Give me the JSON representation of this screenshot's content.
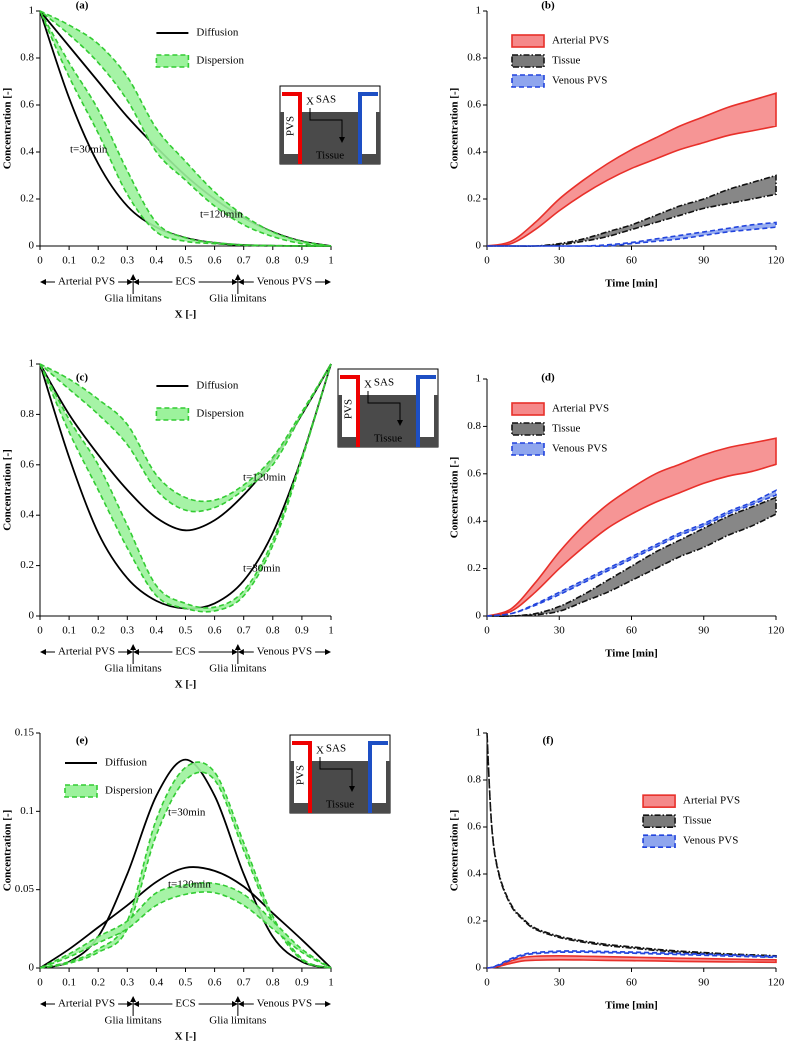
{
  "chart_data": [
    {
      "type": "line",
      "panel": "(a)",
      "xlabel": "X [-]",
      "ylabel": "Concentration [-]",
      "x": [
        0,
        0.1,
        0.2,
        0.3,
        0.4,
        0.5,
        0.6,
        0.7,
        0.8,
        0.9,
        1
      ],
      "xlim": [
        0,
        1
      ],
      "xticks": [
        0,
        0.1,
        0.2,
        0.3,
        0.4,
        0.5,
        0.6,
        0.7,
        0.8,
        0.9,
        1
      ],
      "ylim": [
        0,
        1
      ],
      "yticks": [
        0,
        0.2,
        0.4,
        0.6,
        0.8,
        1
      ],
      "legend": "upper center",
      "series": [
        {
          "name": "Diffusion",
          "color": "#000000",
          "curves": [
            [
              1,
              0.63,
              0.35,
              0.17,
              0.08,
              0.035,
              0.013,
              0.004,
              0.001,
              0,
              0
            ],
            [
              1,
              0.85,
              0.7,
              0.55,
              0.42,
              0.3,
              0.2,
              0.12,
              0.06,
              0.02,
              0
            ]
          ]
        },
        {
          "name": "Dispersion",
          "color": "#33cc33",
          "fill": "#9cf29c",
          "dash": "dashed",
          "bands": [
            {
              "lower": [
                1,
                0.72,
                0.48,
                0.22,
                0.06,
                0.02,
                0.01,
                0.003,
                0.001,
                0,
                0
              ],
              "upper": [
                1,
                0.78,
                0.58,
                0.32,
                0.1,
                0.035,
                0.015,
                0.005,
                0.002,
                0,
                0
              ]
            },
            {
              "lower": [
                1,
                0.9,
                0.78,
                0.62,
                0.4,
                0.28,
                0.17,
                0.09,
                0.04,
                0.01,
                0
              ],
              "upper": [
                1,
                0.94,
                0.86,
                0.72,
                0.5,
                0.36,
                0.23,
                0.13,
                0.06,
                0.02,
                0
              ]
            }
          ]
        }
      ],
      "annotations": [
        "t=30min",
        "t=120min"
      ],
      "regions": [
        "Arterial PVS",
        "ECS",
        "Venous PVS"
      ],
      "boundaries": [
        {
          "value": 0.32,
          "label": "Glia limitans"
        },
        {
          "value": 0.68,
          "label": "Glia limitans"
        }
      ],
      "inset": {
        "pvs": "PVS",
        "x": "X",
        "sas": "SAS",
        "tissue": "Tissue"
      }
    },
    {
      "type": "line",
      "panel": "(b)",
      "xlabel": "Time [min]",
      "ylabel": "Concentration [-]",
      "x": [
        0,
        10,
        20,
        30,
        40,
        50,
        60,
        70,
        80,
        90,
        100,
        110,
        120
      ],
      "xlim": [
        0,
        120
      ],
      "xticks": [
        0,
        30,
        60,
        90,
        120
      ],
      "ylim": [
        0,
        1
      ],
      "yticks": [
        0,
        0.2,
        0.4,
        0.6,
        0.8,
        1
      ],
      "legend": "upper left",
      "series": [
        {
          "name": "Arterial PVS",
          "color": "#e8302a",
          "fill": "#f5898a",
          "dash": "solid",
          "bands": [
            {
              "lower": [
                0,
                0.01,
                0.07,
                0.15,
                0.22,
                0.28,
                0.33,
                0.37,
                0.41,
                0.44,
                0.47,
                0.49,
                0.51
              ],
              "upper": [
                0,
                0.02,
                0.1,
                0.2,
                0.28,
                0.35,
                0.41,
                0.46,
                0.51,
                0.55,
                0.59,
                0.62,
                0.65
              ]
            }
          ]
        },
        {
          "name": "Tissue",
          "color": "#111111",
          "fill": "#7a7a7a",
          "dash": "dashdot",
          "bands": [
            {
              "lower": [
                0,
                0,
                0,
                0.005,
                0.02,
                0.04,
                0.07,
                0.1,
                0.13,
                0.16,
                0.18,
                0.2,
                0.22
              ],
              "upper": [
                0,
                0,
                0,
                0.01,
                0.03,
                0.06,
                0.09,
                0.13,
                0.17,
                0.2,
                0.24,
                0.27,
                0.3
              ]
            }
          ]
        },
        {
          "name": "Venous PVS",
          "color": "#2244dd",
          "fill": "#8fa6ee",
          "dash": "dashed",
          "bands": [
            {
              "lower": [
                0,
                0,
                0,
                0,
                0,
                0,
                0.01,
                0.02,
                0.03,
                0.045,
                0.06,
                0.07,
                0.08
              ],
              "upper": [
                0,
                0,
                0,
                0,
                0,
                0.005,
                0.015,
                0.03,
                0.045,
                0.06,
                0.075,
                0.09,
                0.1
              ]
            }
          ]
        }
      ]
    },
    {
      "type": "line",
      "panel": "(c)",
      "xlabel": "X [-]",
      "ylabel": "Concentration [-]",
      "x": [
        0,
        0.1,
        0.2,
        0.3,
        0.4,
        0.5,
        0.6,
        0.7,
        0.8,
        0.9,
        1
      ],
      "xlim": [
        0,
        1
      ],
      "xticks": [
        0,
        0.1,
        0.2,
        0.3,
        0.4,
        0.5,
        0.6,
        0.7,
        0.8,
        0.9,
        1
      ],
      "ylim": [
        0,
        1
      ],
      "yticks": [
        0,
        0.2,
        0.4,
        0.6,
        0.8,
        1
      ],
      "legend": "upper center",
      "series": [
        {
          "name": "Diffusion",
          "color": "#000000",
          "curves": [
            [
              1,
              0.8,
              0.64,
              0.5,
              0.39,
              0.34,
              0.38,
              0.48,
              0.62,
              0.8,
              1
            ],
            [
              1,
              0.63,
              0.33,
              0.15,
              0.06,
              0.03,
              0.05,
              0.14,
              0.33,
              0.63,
              1
            ]
          ]
        },
        {
          "name": "Dispersion",
          "color": "#33cc33",
          "fill": "#9cf29c",
          "dash": "dashed",
          "bands": [
            {
              "lower": [
                1,
                0.9,
                0.8,
                0.68,
                0.5,
                0.42,
                0.43,
                0.5,
                0.6,
                0.8,
                1
              ],
              "upper": [
                1,
                0.94,
                0.86,
                0.76,
                0.56,
                0.47,
                0.46,
                0.52,
                0.63,
                0.81,
                1
              ]
            },
            {
              "lower": [
                1,
                0.73,
                0.5,
                0.27,
                0.08,
                0.03,
                0.02,
                0.08,
                0.28,
                0.62,
                1
              ],
              "upper": [
                1,
                0.78,
                0.6,
                0.36,
                0.12,
                0.05,
                0.035,
                0.1,
                0.3,
                0.63,
                1
              ]
            }
          ]
        }
      ],
      "annotations": [
        "t=120min",
        "t=30min"
      ],
      "regions": [
        "Arterial PVS",
        "ECS",
        "Venous PVS"
      ],
      "boundaries": [
        {
          "value": 0.32,
          "label": "Glia limitans"
        },
        {
          "value": 0.68,
          "label": "Glia limitans"
        }
      ],
      "inset": {
        "pvs": "PVS",
        "x": "X",
        "sas": "SAS",
        "tissue": "Tissue"
      }
    },
    {
      "type": "line",
      "panel": "(d)",
      "xlabel": "Time [min]",
      "ylabel": "Concentration [-]",
      "x": [
        0,
        10,
        20,
        30,
        40,
        50,
        60,
        70,
        80,
        90,
        100,
        110,
        120
      ],
      "xlim": [
        0,
        120
      ],
      "xticks": [
        0,
        30,
        60,
        90,
        120
      ],
      "ylim": [
        0,
        1
      ],
      "yticks": [
        0,
        0.2,
        0.4,
        0.6,
        0.8,
        1
      ],
      "legend": "upper left",
      "series": [
        {
          "name": "Arterial PVS",
          "color": "#e8302a",
          "fill": "#f5898a",
          "dash": "solid",
          "bands": [
            {
              "lower": [
                0,
                0.02,
                0.1,
                0.2,
                0.29,
                0.37,
                0.43,
                0.48,
                0.52,
                0.56,
                0.59,
                0.61,
                0.64
              ],
              "upper": [
                0,
                0.03,
                0.14,
                0.27,
                0.38,
                0.47,
                0.54,
                0.6,
                0.64,
                0.68,
                0.71,
                0.73,
                0.75
              ]
            }
          ]
        },
        {
          "name": "Tissue",
          "color": "#111111",
          "fill": "#7a7a7a",
          "dash": "dashdot",
          "bands": [
            {
              "lower": [
                0,
                0,
                0.005,
                0.02,
                0.06,
                0.1,
                0.15,
                0.2,
                0.25,
                0.29,
                0.34,
                0.38,
                0.43
              ],
              "upper": [
                0,
                0,
                0.01,
                0.04,
                0.09,
                0.15,
                0.21,
                0.27,
                0.32,
                0.37,
                0.42,
                0.46,
                0.5
              ]
            }
          ]
        },
        {
          "name": "Venous PVS",
          "color": "#2244dd",
          "fill": "#8fa6ee",
          "dash": "dashed",
          "bands": [
            {
              "lower": [
                0,
                0.01,
                0.045,
                0.09,
                0.14,
                0.19,
                0.24,
                0.29,
                0.34,
                0.38,
                0.43,
                0.47,
                0.51
              ],
              "upper": [
                0,
                0.01,
                0.05,
                0.1,
                0.15,
                0.2,
                0.25,
                0.3,
                0.35,
                0.39,
                0.44,
                0.48,
                0.53
              ]
            }
          ]
        }
      ]
    },
    {
      "type": "line",
      "panel": "(e)",
      "xlabel": "X [-]",
      "ylabel": "Concentration [-]",
      "x": [
        0,
        0.1,
        0.2,
        0.3,
        0.4,
        0.5,
        0.6,
        0.7,
        0.8,
        0.9,
        1
      ],
      "xlim": [
        0,
        1
      ],
      "xticks": [
        0,
        0.1,
        0.2,
        0.3,
        0.4,
        0.5,
        0.6,
        0.7,
        0.8,
        0.9,
        1
      ],
      "ylim": [
        0,
        0.15
      ],
      "yticks": [
        0,
        0.05,
        0.1,
        0.15
      ],
      "legend": "upper left",
      "series": [
        {
          "name": "Diffusion",
          "color": "#000000",
          "curves": [
            [
              0,
              0.004,
              0.02,
              0.06,
              0.11,
              0.133,
              0.11,
              0.06,
              0.02,
              0.004,
              0
            ],
            [
              0,
              0.012,
              0.026,
              0.04,
              0.055,
              0.064,
              0.062,
              0.052,
              0.035,
              0.018,
              0
            ]
          ]
        },
        {
          "name": "Dispersion",
          "color": "#33cc33",
          "fill": "#9cf29c",
          "dash": "dashed",
          "bands": [
            {
              "lower": [
                0,
                0.003,
                0.01,
                0.025,
                0.085,
                0.12,
                0.12,
                0.075,
                0.03,
                0.005,
                0
              ],
              "upper": [
                0,
                0.004,
                0.012,
                0.03,
                0.095,
                0.128,
                0.125,
                0.08,
                0.033,
                0.006,
                0
              ]
            },
            {
              "lower": [
                0,
                0.007,
                0.016,
                0.025,
                0.04,
                0.047,
                0.048,
                0.04,
                0.025,
                0.01,
                0
              ],
              "upper": [
                0,
                0.009,
                0.02,
                0.03,
                0.048,
                0.053,
                0.054,
                0.047,
                0.03,
                0.012,
                0
              ]
            }
          ]
        }
      ],
      "annotations": [
        "t=30min",
        "t=120min"
      ],
      "regions": [
        "Arterial PVS",
        "ECS",
        "Venous PVS"
      ],
      "boundaries": [
        {
          "value": 0.32,
          "label": "Glia limitans"
        },
        {
          "value": 0.68,
          "label": "Glia limitans"
        }
      ],
      "inset": {
        "pvs": "PVS",
        "x": "X",
        "sas": "SAS",
        "tissue": "Tissue"
      }
    },
    {
      "type": "line",
      "panel": "(f)",
      "xlabel": "Time [min]",
      "ylabel": "Concentration [-]",
      "x": [
        0,
        2,
        5,
        10,
        15,
        20,
        30,
        40,
        50,
        60,
        70,
        80,
        90,
        100,
        110,
        120
      ],
      "xlim": [
        0,
        120
      ],
      "xticks": [
        0,
        30,
        60,
        90,
        120
      ],
      "ylim": [
        0,
        1
      ],
      "yticks": [
        0,
        0.2,
        0.4,
        0.6,
        0.8,
        1
      ],
      "legend": "center right",
      "series": [
        {
          "name": "Arterial PVS",
          "color": "#e8302a",
          "fill": "#f5898a",
          "dash": "solid",
          "bands": [
            {
              "lower": [
                0,
                0.001,
                0.007,
                0.02,
                0.03,
                0.033,
                0.035,
                0.034,
                0.032,
                0.031,
                0.03,
                0.028,
                0.027,
                0.026,
                0.025,
                0.024
              ],
              "upper": [
                0,
                0.002,
                0.01,
                0.03,
                0.045,
                0.05,
                0.052,
                0.05,
                0.048,
                0.046,
                0.044,
                0.042,
                0.04,
                0.038,
                0.036,
                0.035
              ]
            }
          ]
        },
        {
          "name": "Tissue",
          "color": "#111111",
          "fill": "#7a7a7a",
          "dash": "dashdot",
          "bands": [
            {
              "lower": [
                1,
                0.595,
                0.395,
                0.265,
                0.205,
                0.165,
                0.13,
                0.11,
                0.095,
                0.085,
                0.075,
                0.067,
                0.061,
                0.055,
                0.051,
                0.047
              ],
              "upper": [
                1,
                0.6,
                0.4,
                0.27,
                0.21,
                0.17,
                0.135,
                0.115,
                0.1,
                0.09,
                0.08,
                0.072,
                0.066,
                0.06,
                0.056,
                0.052
              ]
            }
          ]
        },
        {
          "name": "Venous PVS",
          "color": "#2244dd",
          "fill": "#8fa6ee",
          "dash": "dashed",
          "bands": [
            {
              "lower": [
                0,
                0.002,
                0.012,
                0.035,
                0.053,
                0.061,
                0.067,
                0.067,
                0.065,
                0.063,
                0.06,
                0.057,
                0.054,
                0.051,
                0.048,
                0.045
              ],
              "upper": [
                0,
                0.003,
                0.015,
                0.04,
                0.058,
                0.066,
                0.072,
                0.072,
                0.07,
                0.068,
                0.065,
                0.062,
                0.059,
                0.056,
                0.053,
                0.05
              ]
            }
          ]
        }
      ]
    }
  ]
}
